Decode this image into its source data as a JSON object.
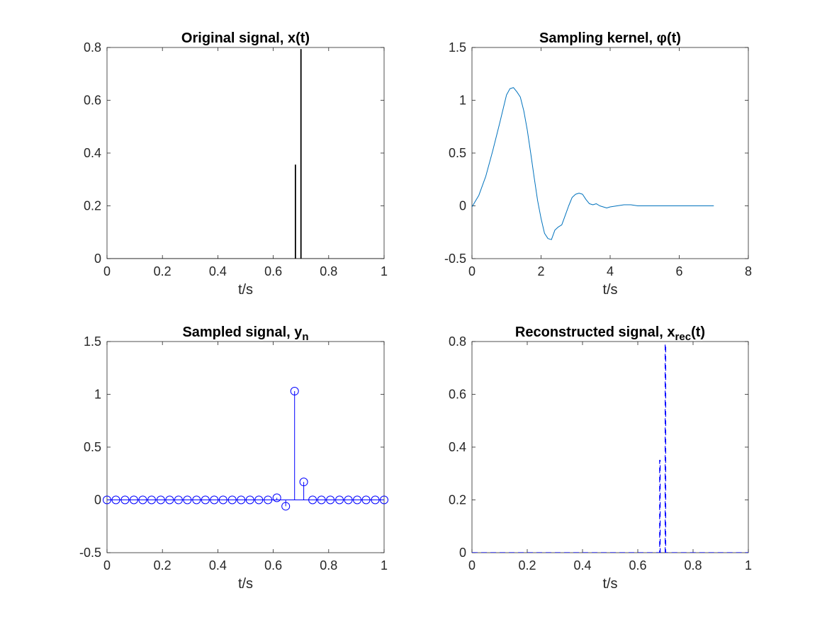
{
  "chart_data": [
    {
      "id": "original",
      "type": "line",
      "title": "Original signal, x(t)",
      "title_parts": [],
      "xlabel": "t/s",
      "ylabel": "",
      "xlim": [
        0,
        1
      ],
      "ylim": [
        0,
        0.8
      ],
      "xticks": [
        0,
        0.2,
        0.4,
        0.6,
        0.8,
        1
      ],
      "yticks": [
        0,
        0.2,
        0.4,
        0.6,
        0.8
      ],
      "xtick_labels": [
        "0",
        "0.2",
        "0.4",
        "0.6",
        "0.8",
        "1"
      ],
      "ytick_labels": [
        "0",
        "0.2",
        "0.4",
        "0.6",
        "0.8"
      ],
      "grid": false,
      "series": [
        {
          "style": "solid",
          "color": "#000000",
          "x": [
            0,
            0.679,
            0.679,
            0.681,
            0.681,
            0.699,
            0.699,
            0.701,
            0.701,
            1
          ],
          "y": [
            0,
            0,
            0.355,
            0.355,
            0,
            0,
            0.793,
            0.793,
            0,
            0
          ]
        }
      ]
    },
    {
      "id": "kernel",
      "type": "line",
      "title": "Sampling kernel, φ(t)",
      "title_parts": [],
      "xlabel": "t/s",
      "ylabel": "",
      "xlim": [
        0,
        8
      ],
      "ylim": [
        -0.5,
        1.5
      ],
      "xticks": [
        0,
        2,
        4,
        6,
        8
      ],
      "yticks": [
        -0.5,
        0,
        0.5,
        1,
        1.5
      ],
      "xtick_labels": [
        "0",
        "2",
        "4",
        "6",
        "8"
      ],
      "ytick_labels": [
        "-0.5",
        "0",
        "0.5",
        "1",
        "1.5"
      ],
      "grid": false,
      "series": [
        {
          "style": "solid",
          "color": "#0072bd",
          "x": [
            0,
            0.2,
            0.4,
            0.6,
            0.8,
            1.0,
            1.1,
            1.2,
            1.3,
            1.4,
            1.5,
            1.6,
            1.7,
            1.8,
            1.9,
            2.0,
            2.1,
            2.2,
            2.3,
            2.4,
            2.5,
            2.6,
            2.7,
            2.8,
            2.9,
            3.0,
            3.1,
            3.2,
            3.3,
            3.4,
            3.5,
            3.6,
            3.7,
            3.8,
            3.9,
            4.0,
            4.2,
            4.4,
            4.6,
            4.8,
            5.0,
            5.5,
            6.0,
            6.5,
            7.0
          ],
          "y": [
            -0.01,
            0.1,
            0.28,
            0.52,
            0.78,
            1.05,
            1.11,
            1.12,
            1.08,
            1.03,
            0.9,
            0.72,
            0.5,
            0.27,
            0.05,
            -0.12,
            -0.26,
            -0.31,
            -0.32,
            -0.23,
            -0.2,
            -0.18,
            -0.09,
            0.0,
            0.08,
            0.11,
            0.12,
            0.11,
            0.06,
            0.02,
            0.01,
            0.02,
            0.0,
            -0.01,
            -0.02,
            -0.01,
            0.0,
            0.01,
            0.01,
            0.0,
            0.0,
            0.0,
            0.0,
            0.0,
            0.0
          ]
        }
      ]
    },
    {
      "id": "sampled",
      "type": "stem",
      "title": "Sampled signal, y",
      "title_parts": [
        {
          "text": "n",
          "sub": true
        }
      ],
      "xlabel": "t/s",
      "ylabel": "",
      "xlim": [
        0,
        1
      ],
      "ylim": [
        -0.5,
        1.5
      ],
      "xticks": [
        0,
        0.2,
        0.4,
        0.6,
        0.8,
        1
      ],
      "yticks": [
        -0.5,
        0,
        0.5,
        1,
        1.5
      ],
      "xtick_labels": [
        "0",
        "0.2",
        "0.4",
        "0.6",
        "0.8",
        "1"
      ],
      "ytick_labels": [
        "-0.5",
        "0",
        "0.5",
        "1",
        "1.5"
      ],
      "grid": false,
      "series": [
        {
          "style": "stem",
          "color": "#0000ff",
          "x": [
            0,
            0.032,
            0.065,
            0.097,
            0.129,
            0.161,
            0.194,
            0.226,
            0.258,
            0.29,
            0.323,
            0.355,
            0.387,
            0.419,
            0.452,
            0.484,
            0.516,
            0.548,
            0.581,
            0.613,
            0.645,
            0.677,
            0.71,
            0.742,
            0.774,
            0.806,
            0.839,
            0.871,
            0.903,
            0.935,
            0.968,
            1.0
          ],
          "y": [
            0,
            0,
            0,
            0,
            0,
            0,
            0,
            0,
            0,
            0,
            0,
            0,
            0,
            0,
            0,
            0,
            0,
            0,
            0,
            0.02,
            -0.06,
            1.03,
            0.17,
            0,
            0,
            0,
            0,
            0,
            0,
            0,
            0,
            0
          ]
        }
      ]
    },
    {
      "id": "reconstructed",
      "type": "line",
      "title": "Reconstructed signal, x",
      "title_parts": [
        {
          "text": "rec",
          "sub": true
        },
        {
          "text": "(t)",
          "sub": false
        }
      ],
      "xlabel": "t/s",
      "ylabel": "",
      "xlim": [
        0,
        1
      ],
      "ylim": [
        0,
        0.8
      ],
      "xticks": [
        0,
        0.2,
        0.4,
        0.6,
        0.8,
        1
      ],
      "yticks": [
        0,
        0.2,
        0.4,
        0.6,
        0.8
      ],
      "xtick_labels": [
        "0",
        "0.2",
        "0.4",
        "0.6",
        "0.8",
        "1"
      ],
      "ytick_labels": [
        "0",
        "0.2",
        "0.4",
        "0.6",
        "0.8"
      ],
      "grid": false,
      "series": [
        {
          "style": "dashed",
          "color": "#0000ff",
          "x": [
            0,
            0.679,
            0.679,
            0.681,
            0.681,
            0.699,
            0.699,
            0.701,
            0.701,
            1
          ],
          "y": [
            0,
            0,
            0.35,
            0.35,
            0,
            0,
            0.79,
            0.79,
            0,
            0
          ]
        }
      ]
    }
  ]
}
